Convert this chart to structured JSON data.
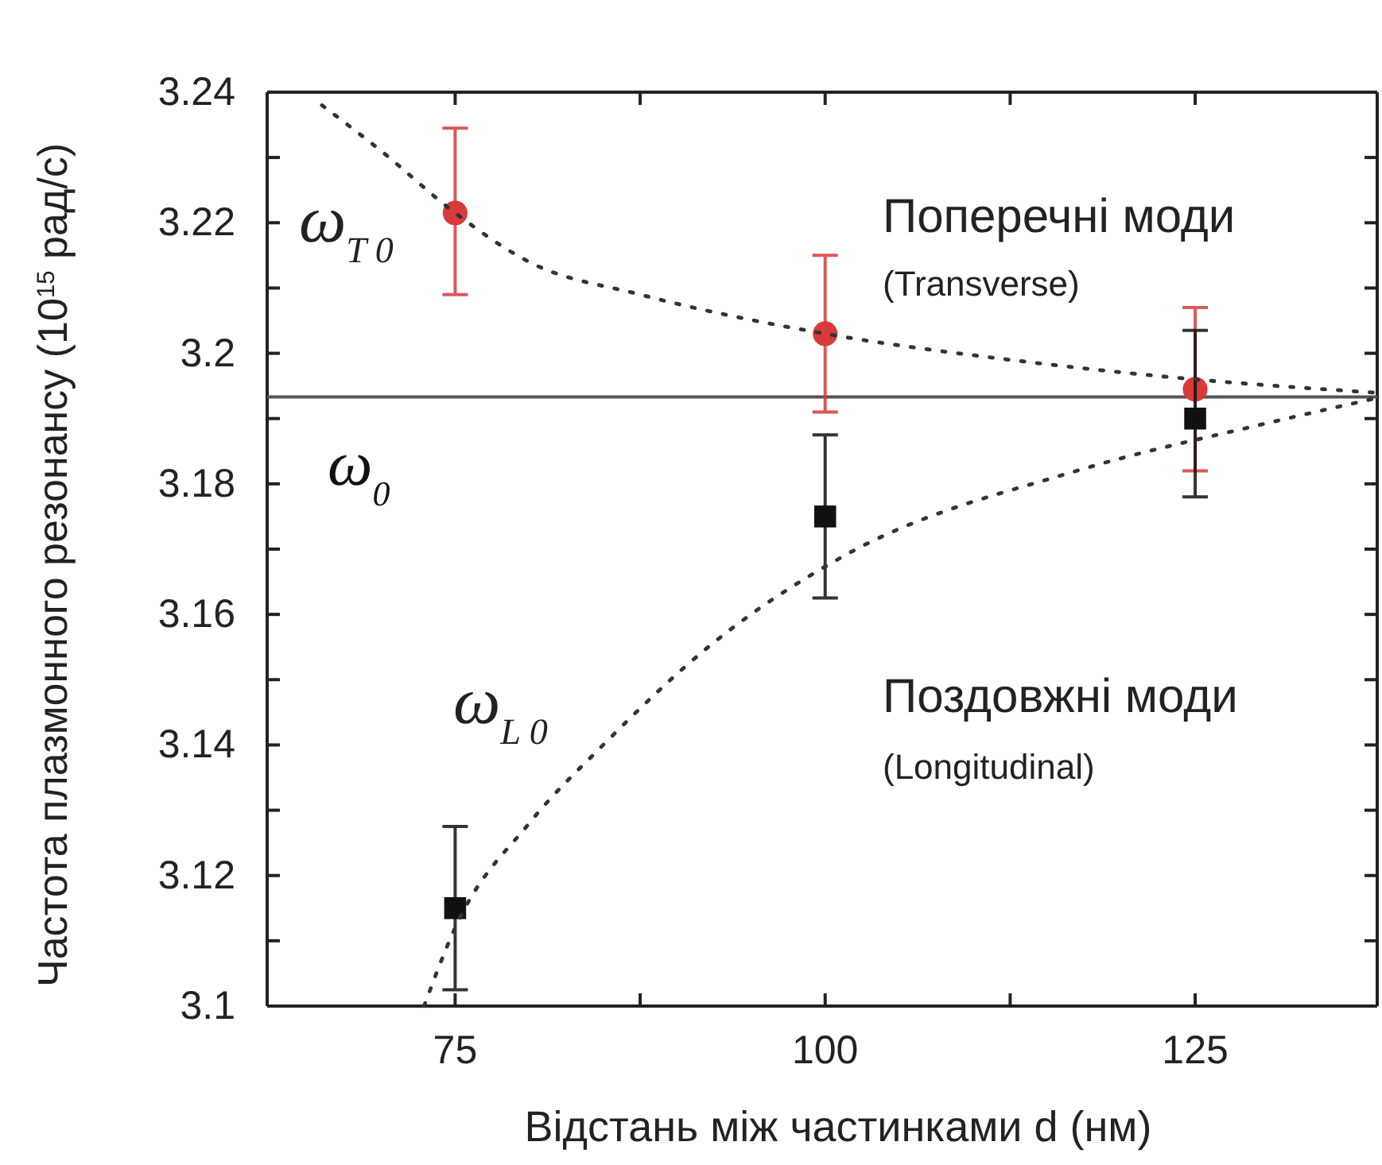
{
  "chart_data": {
    "type": "scatter",
    "xlabel": "Відстань між частинками d (нм)",
    "ylabel": "Частота плазмонного резонансу (10$^{15}$ рад/с)",
    "xlim": [
      62.3,
      137.3
    ],
    "xticks": [
      75,
      {
        "value": 87.5,
        "label": null
      },
      100,
      {
        "value": 112.5,
        "label": null
      },
      125
    ],
    "ylim": [
      3.1,
      3.24
    ],
    "yticks": [
      3.1,
      {
        "value": 3.11,
        "label": null
      },
      3.12,
      {
        "value": 3.13,
        "label": null
      },
      3.14,
      {
        "value": 3.15,
        "label": null
      },
      3.16,
      {
        "value": 3.17,
        "label": null
      },
      3.18,
      {
        "value": 3.19,
        "label": null
      },
      3.2,
      {
        "value": 3.21,
        "label": null
      },
      3.22,
      {
        "value": 3.23,
        "label": null
      },
      3.24
    ],
    "grid": false,
    "series": [
      {
        "type": "line",
        "line_style": "dotted",
        "marker": "none",
        "color": "#333333",
        "x": [
          66,
          70,
          75,
          80,
          87.5,
          100,
          112.5,
          125,
          137
        ],
        "values": [
          3.238,
          3.231,
          3.2215,
          3.214,
          3.209,
          3.203,
          3.199,
          3.196,
          3.194
        ]
      },
      {
        "type": "line",
        "line_style": "dotted",
        "marker": "none",
        "color": "#333333",
        "x": [
          72.9,
          75,
          80,
          85,
          92.1,
          101.3,
          117,
          129.3,
          137
        ],
        "values": [
          3.1,
          3.112,
          3.128,
          3.14,
          3.155,
          3.169,
          3.182,
          3.189,
          3.193
        ]
      },
      {
        "marker": "circle",
        "color": "#d83a3a",
        "x": [
          75,
          100,
          125
        ],
        "values": [
          3.2215,
          3.203,
          3.1945
        ],
        "errors": [
          [
            3.209,
            3.2345
          ],
          [
            3.191,
            3.215
          ],
          [
            3.182,
            3.207
          ]
        ]
      },
      {
        "marker": "square",
        "color": "#111111",
        "x": [
          75,
          100,
          125
        ],
        "values": [
          3.115,
          3.175,
          3.19
        ],
        "errors": [
          [
            3.1025,
            3.1275
          ],
          [
            3.1625,
            3.1875
          ],
          [
            3.178,
            3.2035
          ]
        ]
      }
    ],
    "ref_lines": [
      {
        "axis": "y",
        "value": 3.1933,
        "label": "ω$_{0}$",
        "color": "#555555"
      }
    ],
    "annotations": [
      "ω$_{T 0}$",
      "ω$_{L 0}$",
      "Поперечні моди",
      "(Transverse)",
      "Поздовжні моди",
      "(Longitudinal)"
    ]
  }
}
